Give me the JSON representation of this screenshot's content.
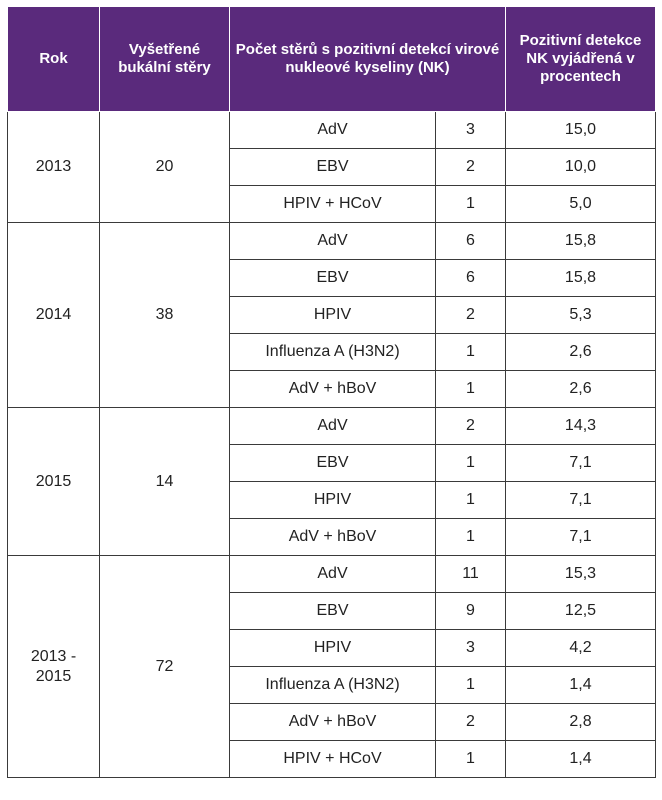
{
  "headers": {
    "rok": "Rok",
    "vysetrene": "Vyšetřené bukální stěry",
    "pocet": "Počet stěrů s pozitivní detekcí virové nukleové kyseliny (NK)",
    "pozitivni": "Pozitivní detekce NK vyjádřená v procentech"
  },
  "groups": [
    {
      "year": "2013",
      "swabs": "20",
      "rows": [
        {
          "virus": "AdV",
          "count": "3",
          "percent": "15,0"
        },
        {
          "virus": "EBV",
          "count": "2",
          "percent": "10,0"
        },
        {
          "virus": "HPIV + HCoV",
          "count": "1",
          "percent": "5,0"
        }
      ]
    },
    {
      "year": "2014",
      "swabs": "38",
      "rows": [
        {
          "virus": "AdV",
          "count": "6",
          "percent": "15,8"
        },
        {
          "virus": "EBV",
          "count": "6",
          "percent": "15,8"
        },
        {
          "virus": "HPIV",
          "count": "2",
          "percent": "5,3"
        },
        {
          "virus": "Influenza A (H3N2)",
          "count": "1",
          "percent": "2,6"
        },
        {
          "virus": "AdV + hBoV",
          "count": "1",
          "percent": "2,6"
        }
      ]
    },
    {
      "year": "2015",
      "swabs": "14",
      "rows": [
        {
          "virus": "AdV",
          "count": "2",
          "percent": "14,3"
        },
        {
          "virus": "EBV",
          "count": "1",
          "percent": "7,1"
        },
        {
          "virus": "HPIV",
          "count": "1",
          "percent": "7,1"
        },
        {
          "virus": "AdV + hBoV",
          "count": "1",
          "percent": "7,1"
        }
      ]
    },
    {
      "year": "2013 - 2015",
      "swabs": "72",
      "rows": [
        {
          "virus": "AdV",
          "count": "11",
          "percent": "15,3"
        },
        {
          "virus": "EBV",
          "count": "9",
          "percent": "12,5"
        },
        {
          "virus": "HPIV",
          "count": "3",
          "percent": "4,2"
        },
        {
          "virus": "Influenza A (H3N2)",
          "count": "1",
          "percent": "1,4"
        },
        {
          "virus": "AdV + hBoV",
          "count": "2",
          "percent": "2,8"
        },
        {
          "virus": "HPIV + HCoV",
          "count": "1",
          "percent": "1,4"
        }
      ]
    }
  ]
}
